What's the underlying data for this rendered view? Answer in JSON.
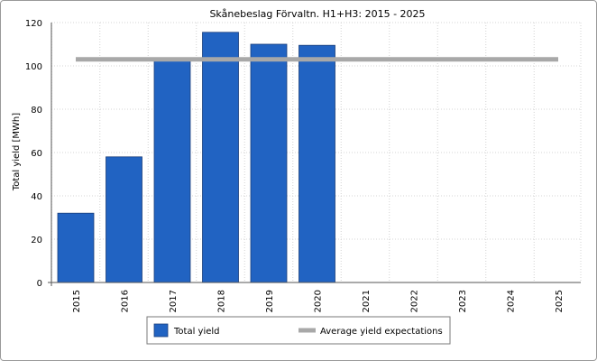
{
  "chart_data": {
    "type": "bar",
    "title": "Skånebeslag Förvaltn. H1+H3: 2015 - 2025",
    "xlabel": "",
    "ylabel": "Total yield [MWh]",
    "categories": [
      "2015",
      "2016",
      "2017",
      "2018",
      "2019",
      "2020",
      "2021",
      "2022",
      "2023",
      "2024",
      "2025"
    ],
    "ylim": [
      0,
      120
    ],
    "yticks": [
      0,
      20,
      40,
      60,
      80,
      100,
      120
    ],
    "grid": true,
    "series": [
      {
        "name": "Total yield",
        "type": "bar",
        "color": "#2163c2",
        "values": [
          32,
          58,
          103,
          115.5,
          110,
          109.5,
          null,
          null,
          null,
          null,
          null
        ]
      },
      {
        "name": "Average yield expectations",
        "type": "line",
        "color": "#a8a8a8",
        "values": [
          103,
          103,
          103,
          103,
          103,
          103,
          103,
          103,
          103,
          103,
          103
        ]
      }
    ],
    "legend_position": "bottom"
  }
}
